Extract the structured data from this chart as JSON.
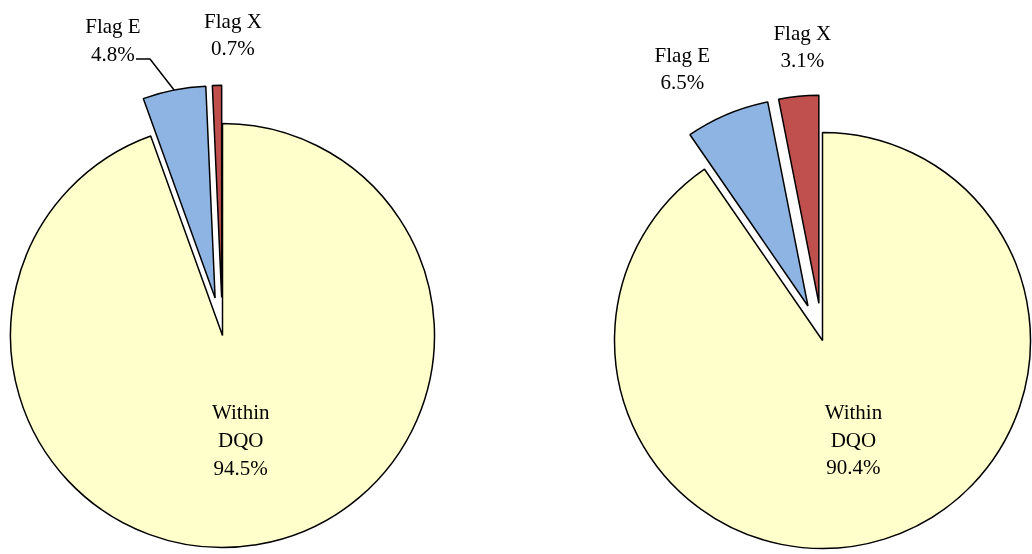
{
  "chart_data": [
    {
      "type": "pie",
      "categories": [
        "Within DQO",
        "Flag E",
        "Flag X"
      ],
      "values": [
        94.5,
        4.8,
        0.7
      ],
      "value_labels": [
        "94.5%",
        "4.8%",
        "0.7%"
      ],
      "colors": [
        "#ffffcc",
        "#8db4e2",
        "#c0504d"
      ]
    },
    {
      "type": "pie",
      "categories": [
        "Within DQO",
        "Flag E",
        "Flag X"
      ],
      "values": [
        90.4,
        6.5,
        3.1
      ],
      "value_labels": [
        "90.4%",
        "6.5%",
        "3.1%"
      ],
      "colors": [
        "#ffffcc",
        "#8db4e2",
        "#c0504d"
      ]
    }
  ]
}
